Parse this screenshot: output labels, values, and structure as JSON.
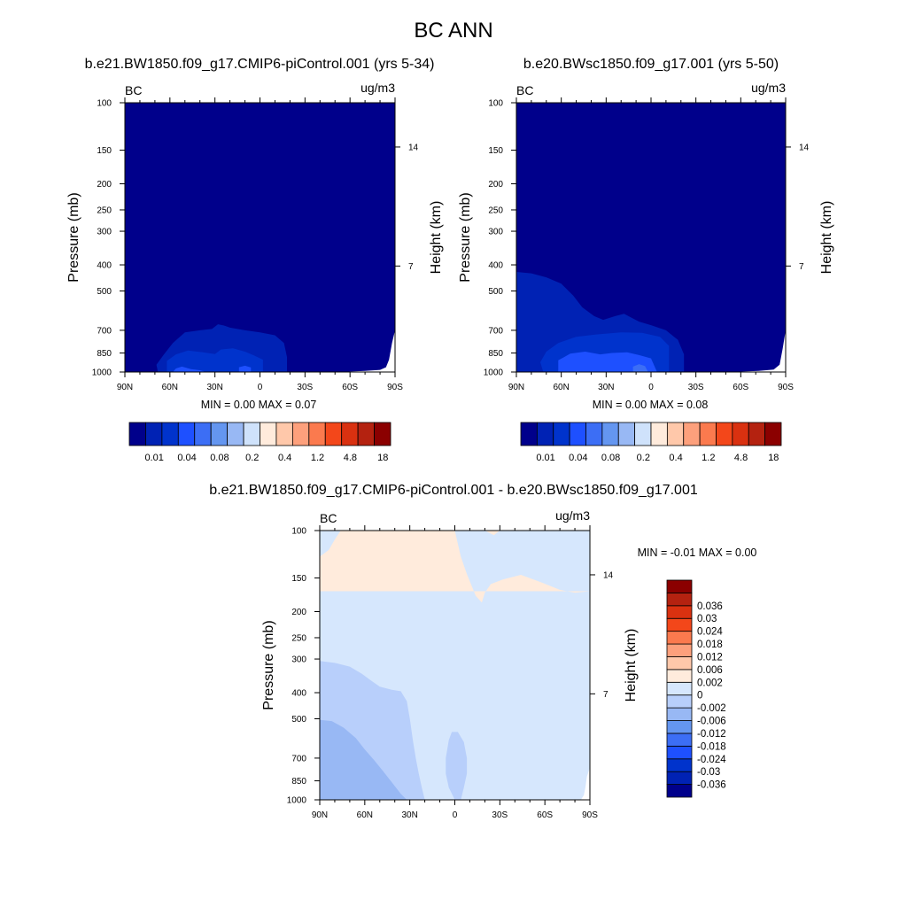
{
  "figure": {
    "title": "BC ANN"
  },
  "colors": {
    "frame": "#000000",
    "missing": "#ffffff"
  },
  "chart_data": [
    {
      "type": "heatmap",
      "id": "panel1",
      "title": "b.e21.BW1850.f09_g17.CMIP6-piControl.001 (yrs 5-34)",
      "left_label": "BC",
      "right_label": "ug/m3",
      "ylabel": "Pressure (mb)",
      "ylabel_right": "Height (km)",
      "x_ticks": [
        "90N",
        "60N",
        "30N",
        "0",
        "30S",
        "60S",
        "90S"
      ],
      "xlim": [
        90,
        -90
      ],
      "y_ticks": [
        100,
        150,
        200,
        250,
        300,
        400,
        500,
        700,
        850,
        1000
      ],
      "ylim": [
        100,
        1000
      ],
      "y_scale": "log",
      "height_ticks": [
        14,
        7
      ],
      "height_tick_pressures": [
        146,
        404
      ],
      "stats": {
        "min_label": "MIN =",
        "min": "0.00",
        "max_label": "MAX =",
        "max": "0.07"
      },
      "levels": [
        0.005,
        0.01,
        0.02,
        0.04,
        0.06,
        0.08,
        0.1,
        0.2,
        0.3,
        0.4,
        0.8,
        1.2,
        2.4,
        4.8,
        9.6,
        18
      ],
      "palette": [
        "#00008b",
        "#0022b4",
        "#0033cc",
        "#1e50ff",
        "#3c6ef5",
        "#6496f0",
        "#98b8f4",
        "#cfe2fb",
        "#ffebdc",
        "#ffc8aa",
        "#fda07c",
        "#fb7a4e",
        "#f3471a",
        "#d93110",
        "#b42210",
        "#8b0000"
      ],
      "colorbar_labels": [
        {
          "label": "0.01",
          "index": 1
        },
        {
          "label": "0.04",
          "index": 3
        },
        {
          "label": "0.08",
          "index": 5
        },
        {
          "label": "0.2",
          "index": 7
        },
        {
          "label": "0.4",
          "index": 9
        },
        {
          "label": "1.2",
          "index": 11
        },
        {
          "label": "4.8",
          "index": 13
        },
        {
          "label": "18",
          "index": 15
        }
      ],
      "background_color_index": 0,
      "regions": [
        {
          "color_index": 1,
          "points": [
            [
              68,
              1000
            ],
            [
              69,
              940
            ],
            [
              64,
              860
            ],
            [
              58,
              780
            ],
            [
              50,
              712
            ],
            [
              40,
              700
            ],
            [
              32,
              692
            ],
            [
              28,
              665
            ],
            [
              24,
              672
            ],
            [
              20,
              684
            ],
            [
              10,
              700
            ],
            [
              0,
              712
            ],
            [
              -10,
              730
            ],
            [
              -16,
              780
            ],
            [
              -18,
              880
            ],
            [
              -18,
              1000
            ]
          ]
        },
        {
          "color_index": 2,
          "points": [
            [
              62,
              1000
            ],
            [
              62,
              910
            ],
            [
              56,
              860
            ],
            [
              48,
              832
            ],
            [
              38,
              845
            ],
            [
              30,
              858
            ],
            [
              26,
              825
            ],
            [
              18,
              816
            ],
            [
              10,
              840
            ],
            [
              4,
              868
            ],
            [
              -2,
              900
            ],
            [
              -2,
              1000
            ]
          ]
        },
        {
          "color_index": 3,
          "points": [
            [
              58,
              1000
            ],
            [
              56,
              970
            ],
            [
              52,
              955
            ],
            [
              46,
              975
            ],
            [
              40,
              985
            ],
            [
              36,
              1000
            ]
          ]
        },
        {
          "color_index": 3,
          "points": [
            [
              14,
              1000
            ],
            [
              14,
              960
            ],
            [
              10,
              948
            ],
            [
              6,
              962
            ],
            [
              6,
              1000
            ]
          ]
        }
      ],
      "missing_regions": [
        {
          "points": [
            [
              -52,
              1000
            ],
            [
              -70,
              990
            ],
            [
              -80,
              982
            ],
            [
              -84,
              960
            ],
            [
              -86,
              900
            ],
            [
              -88,
              780
            ],
            [
              -90,
              700
            ],
            [
              -90,
              1000
            ]
          ]
        }
      ]
    },
    {
      "type": "heatmap",
      "id": "panel2",
      "title": "b.e20.BWsc1850.f09_g17.001 (yrs 5-50)",
      "left_label": "BC",
      "right_label": "ug/m3",
      "ylabel": "Pressure (mb)",
      "ylabel_right": "Height (km)",
      "x_ticks": [
        "90N",
        "60N",
        "30N",
        "0",
        "30S",
        "60S",
        "90S"
      ],
      "xlim": [
        90,
        -90
      ],
      "y_ticks": [
        100,
        150,
        200,
        250,
        300,
        400,
        500,
        700,
        850,
        1000
      ],
      "ylim": [
        100,
        1000
      ],
      "y_scale": "log",
      "height_ticks": [
        14,
        7
      ],
      "height_tick_pressures": [
        146,
        404
      ],
      "stats": {
        "min_label": "MIN =",
        "min": "0.00",
        "max_label": "MAX =",
        "max": "0.08"
      },
      "levels": [
        0.005,
        0.01,
        0.02,
        0.04,
        0.06,
        0.08,
        0.1,
        0.2,
        0.3,
        0.4,
        0.8,
        1.2,
        2.4,
        4.8,
        9.6,
        18
      ],
      "palette": [
        "#00008b",
        "#0022b4",
        "#0033cc",
        "#1e50ff",
        "#3c6ef5",
        "#6496f0",
        "#98b8f4",
        "#cfe2fb",
        "#ffebdc",
        "#ffc8aa",
        "#fda07c",
        "#fb7a4e",
        "#f3471a",
        "#d93110",
        "#b42210",
        "#8b0000"
      ],
      "colorbar_labels": [
        {
          "label": "0.01",
          "index": 1
        },
        {
          "label": "0.04",
          "index": 3
        },
        {
          "label": "0.08",
          "index": 5
        },
        {
          "label": "0.2",
          "index": 7
        },
        {
          "label": "0.4",
          "index": 9
        },
        {
          "label": "1.2",
          "index": 11
        },
        {
          "label": "4.8",
          "index": 13
        },
        {
          "label": "18",
          "index": 15
        }
      ],
      "background_color_index": 0,
      "regions": [
        {
          "color_index": 1,
          "points": [
            [
              90,
              1000
            ],
            [
              90,
              425
            ],
            [
              80,
              430
            ],
            [
              70,
              445
            ],
            [
              60,
              470
            ],
            [
              52,
              520
            ],
            [
              46,
              575
            ],
            [
              38,
              620
            ],
            [
              32,
              640
            ],
            [
              24,
              620
            ],
            [
              18,
              608
            ],
            [
              14,
              625
            ],
            [
              8,
              650
            ],
            [
              0,
              670
            ],
            [
              -10,
              700
            ],
            [
              -18,
              760
            ],
            [
              -22,
              860
            ],
            [
              -22,
              1000
            ]
          ]
        },
        {
          "color_index": 2,
          "points": [
            [
              72,
              1000
            ],
            [
              74,
              920
            ],
            [
              70,
              840
            ],
            [
              62,
              780
            ],
            [
              50,
              740
            ],
            [
              36,
              725
            ],
            [
              20,
              712
            ],
            [
              6,
              715
            ],
            [
              -6,
              740
            ],
            [
              -12,
              800
            ],
            [
              -12,
              1000
            ]
          ]
        },
        {
          "color_index": 3,
          "points": [
            [
              62,
              1000
            ],
            [
              62,
              905
            ],
            [
              54,
              855
            ],
            [
              44,
              840
            ],
            [
              34,
              860
            ],
            [
              26,
              850
            ],
            [
              16,
              845
            ],
            [
              8,
              865
            ],
            [
              0,
              890
            ],
            [
              -4,
              1000
            ]
          ]
        },
        {
          "color_index": 4,
          "points": [
            [
              12,
              1000
            ],
            [
              12,
              955
            ],
            [
              8,
              935
            ],
            [
              4,
              950
            ],
            [
              2,
              1000
            ]
          ]
        }
      ],
      "missing_regions": [
        {
          "points": [
            [
              -52,
              1000
            ],
            [
              -72,
              990
            ],
            [
              -82,
              980
            ],
            [
              -86,
              940
            ],
            [
              -88,
              820
            ],
            [
              -90,
              700
            ],
            [
              -90,
              1000
            ]
          ]
        }
      ]
    },
    {
      "type": "heatmap",
      "id": "panel3",
      "title": "b.e21.BW1850.f09_g17.CMIP6-piControl.001 - b.e20.BWsc1850.f09_g17.001",
      "left_label": "BC",
      "right_label": "ug/m3",
      "ylabel": "Pressure (mb)",
      "ylabel_right": "Height (km)",
      "x_ticks": [
        "90N",
        "60N",
        "30N",
        "0",
        "30S",
        "60S",
        "90S"
      ],
      "xlim": [
        90,
        -90
      ],
      "y_ticks": [
        100,
        150,
        200,
        250,
        300,
        400,
        500,
        700,
        850,
        1000
      ],
      "ylim": [
        100,
        1000
      ],
      "y_scale": "log",
      "height_ticks": [
        14,
        7
      ],
      "height_tick_pressures": [
        146,
        404
      ],
      "stats": {
        "min_label": "MIN =",
        "min": "-0.01",
        "max_label": "MAX =",
        "max": "0.00"
      },
      "levels": [
        -0.036,
        -0.03,
        -0.024,
        -0.018,
        -0.012,
        -0.006,
        -0.002,
        0,
        0.002,
        0.006,
        0.012,
        0.018,
        0.024,
        0.03,
        0.036
      ],
      "palette": [
        "#00008b",
        "#0022b4",
        "#0033cc",
        "#1e50ff",
        "#3c6ef5",
        "#6496f0",
        "#98b8f4",
        "#b8cffb",
        "#d6e7fd",
        "#ffebdc",
        "#ffc8aa",
        "#fda07c",
        "#fb7a4e",
        "#f3471a",
        "#d93110",
        "#b42210",
        "#8b0000"
      ],
      "colorbar_labels": [
        {
          "label": "0.036",
          "boundary": 14
        },
        {
          "label": "0.03",
          "boundary": 13
        },
        {
          "label": "0.024",
          "boundary": 12
        },
        {
          "label": "0.018",
          "boundary": 11
        },
        {
          "label": "0.012",
          "boundary": 10
        },
        {
          "label": "0.006",
          "boundary": 9
        },
        {
          "label": "0.002",
          "boundary": 8
        },
        {
          "label": "0",
          "boundary": 7
        },
        {
          "label": "-0.002",
          "boundary": 6
        },
        {
          "label": "-0.006",
          "boundary": 5
        },
        {
          "label": "-0.012",
          "boundary": 4
        },
        {
          "label": "-0.018",
          "boundary": 3
        },
        {
          "label": "-0.024",
          "boundary": 2
        },
        {
          "label": "-0.03",
          "boundary": 1
        },
        {
          "label": "-0.036",
          "boundary": 0
        }
      ],
      "background_color_index": 8,
      "regions": [
        {
          "color_index": 9,
          "points": [
            [
              90,
              168
            ],
            [
              90,
              125
            ],
            [
              84,
              118
            ],
            [
              80,
              108
            ],
            [
              76,
              100
            ],
            [
              0,
              100
            ],
            [
              -2,
              112
            ],
            [
              -4,
              125
            ],
            [
              -8,
              145
            ],
            [
              -14,
              175
            ],
            [
              -18,
              185
            ],
            [
              -20,
              170
            ],
            [
              -24,
              158
            ],
            [
              -32,
              152
            ],
            [
              -44,
              146
            ],
            [
              -58,
              156
            ],
            [
              -70,
              166
            ],
            [
              -80,
              170
            ],
            [
              -90,
              168
            ]
          ]
        },
        {
          "color_index": 9,
          "points": [
            [
              -20,
              100
            ],
            [
              -30,
              100
            ],
            [
              -26,
              104
            ]
          ]
        },
        {
          "color_index": 7,
          "points": [
            [
              90,
              1000
            ],
            [
              90,
              305
            ],
            [
              80,
              310
            ],
            [
              70,
              320
            ],
            [
              62,
              340
            ],
            [
              56,
              360
            ],
            [
              50,
              380
            ],
            [
              42,
              390
            ],
            [
              36,
              395
            ],
            [
              32,
              430
            ],
            [
              30,
              500
            ],
            [
              28,
              600
            ],
            [
              26,
              700
            ],
            [
              24,
              800
            ],
            [
              22,
              900
            ],
            [
              20,
              1000
            ]
          ]
        },
        {
          "color_index": 6,
          "points": [
            [
              90,
              1000
            ],
            [
              90,
              505
            ],
            [
              82,
              510
            ],
            [
              74,
              540
            ],
            [
              66,
              590
            ],
            [
              60,
              650
            ],
            [
              54,
              710
            ],
            [
              48,
              780
            ],
            [
              42,
              860
            ],
            [
              36,
              950
            ],
            [
              32,
              1000
            ]
          ]
        },
        {
          "color_index": 7,
          "points": [
            [
              0,
              1000
            ],
            [
              4,
              900
            ],
            [
              6,
              800
            ],
            [
              6,
              700
            ],
            [
              4,
              600
            ],
            [
              2,
              560
            ],
            [
              -2,
              560
            ],
            [
              -6,
              610
            ],
            [
              -8,
              700
            ],
            [
              -8,
              800
            ],
            [
              -6,
              900
            ],
            [
              -4,
              1000
            ]
          ]
        }
      ],
      "missing_regions": [
        {
          "points": [
            [
              -84,
              1000
            ],
            [
              -86,
              960
            ],
            [
              -87,
              900
            ],
            [
              -88,
              820
            ],
            [
              -90,
              760
            ],
            [
              -90,
              1000
            ]
          ]
        }
      ]
    }
  ]
}
